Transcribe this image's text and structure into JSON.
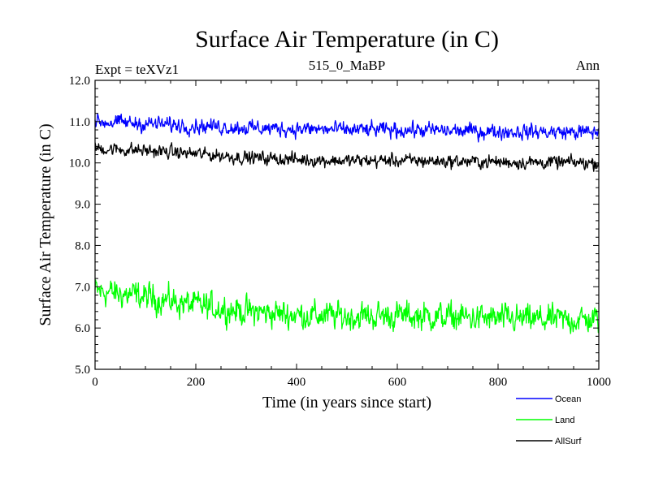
{
  "chart_data": {
    "type": "line",
    "title": "Surface Air Temperature (in C)",
    "subtitle": "515_0_MaBP",
    "left_label": "Expt = teXVz1",
    "right_label": "Ann",
    "xlabel": "Time (in years since start)",
    "ylabel": "Surface Air Temperature (in C)",
    "xlim": [
      0,
      1000
    ],
    "ylim": [
      5.0,
      12.0
    ],
    "x_ticks": [
      0,
      200,
      400,
      600,
      800,
      1000
    ],
    "x_tick_labels": [
      "0",
      "200",
      "400",
      "600",
      "800",
      "1000"
    ],
    "y_ticks": [
      5.0,
      6.0,
      7.0,
      8.0,
      9.0,
      10.0,
      11.0,
      12.0
    ],
    "y_tick_labels": [
      "5.0",
      "6.0",
      "7.0",
      "8.0",
      "9.0",
      "10.0",
      "11.0",
      "12.0"
    ],
    "grid": false,
    "legend_position": "bottom-right, below plot",
    "series": [
      {
        "name": "Ocean",
        "color": "#0000ff",
        "trend_x": [
          0,
          100,
          200,
          300,
          400,
          500,
          600,
          700,
          800,
          900,
          1000
        ],
        "trend_y": [
          11.0,
          10.95,
          10.9,
          10.85,
          10.82,
          10.8,
          10.8,
          10.78,
          10.76,
          10.75,
          10.74
        ],
        "noise": 0.08
      },
      {
        "name": "Land",
        "color": "#00ff00",
        "trend_x": [
          0,
          100,
          200,
          300,
          400,
          500,
          600,
          700,
          800,
          900,
          1000
        ],
        "trend_y": [
          6.9,
          6.75,
          6.55,
          6.4,
          6.32,
          6.28,
          6.3,
          6.27,
          6.22,
          6.2,
          6.2
        ],
        "noise": 0.15
      },
      {
        "name": "AllSurf",
        "color": "#000000",
        "trend_x": [
          0,
          100,
          200,
          300,
          400,
          500,
          600,
          700,
          800,
          900,
          1000
        ],
        "trend_y": [
          10.35,
          10.3,
          10.22,
          10.13,
          10.08,
          10.05,
          10.06,
          10.04,
          10.02,
          10.01,
          10.0
        ],
        "noise": 0.07
      }
    ]
  }
}
